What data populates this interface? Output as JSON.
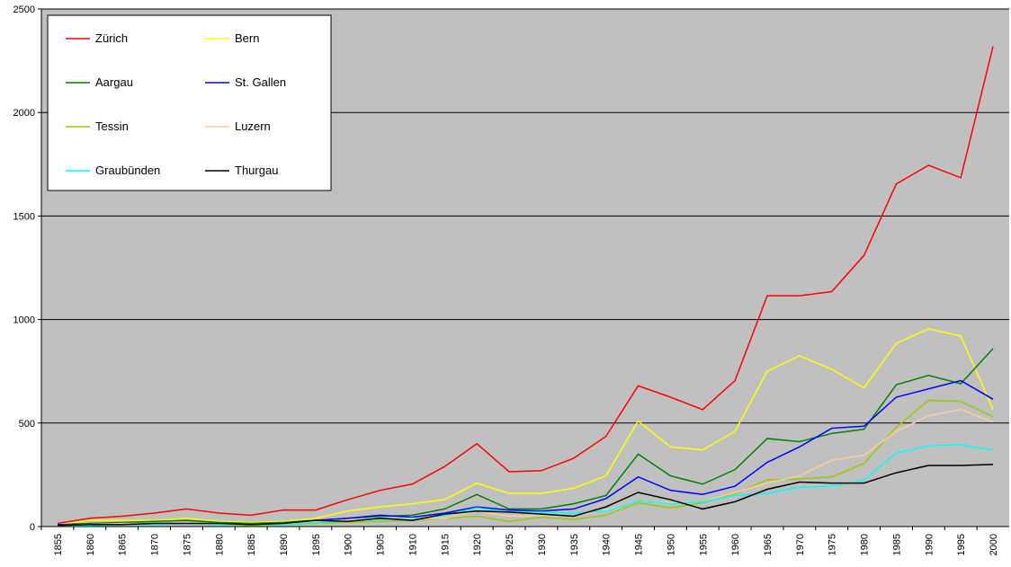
{
  "chart_data": {
    "type": "line",
    "categories": [
      "1855",
      "1860",
      "1865",
      "1870",
      "1875",
      "1880",
      "1885",
      "1890",
      "1895",
      "1900",
      "1905",
      "1910",
      "1915",
      "1920",
      "1925",
      "1930",
      "1935",
      "1940",
      "1945",
      "1950",
      "1955",
      "1960",
      "1965",
      "1970",
      "1975",
      "1980",
      "1985",
      "1990",
      "1995",
      "2000"
    ],
    "series": [
      {
        "name": "Zürich",
        "color": "#ff0000",
        "values": [
          15,
          40,
          50,
          65,
          85,
          65,
          55,
          80,
          80,
          130,
          175,
          205,
          290,
          400,
          265,
          270,
          330,
          435,
          680,
          625,
          565,
          705,
          1115,
          1115,
          1135,
          1310,
          1655,
          1745,
          1685,
          2320
        ]
      },
      {
        "name": "Bern",
        "color": "#ffff00",
        "values": [
          10,
          30,
          30,
          30,
          40,
          25,
          20,
          25,
          40,
          75,
          95,
          110,
          130,
          210,
          160,
          160,
          185,
          245,
          510,
          385,
          370,
          460,
          750,
          825,
          760,
          670,
          885,
          955,
          920,
          565
        ]
      },
      {
        "name": "Aargau",
        "color": "#008000",
        "values": [
          10,
          15,
          20,
          25,
          30,
          20,
          15,
          20,
          30,
          40,
          50,
          55,
          85,
          155,
          85,
          85,
          110,
          150,
          350,
          245,
          205,
          275,
          425,
          410,
          450,
          470,
          685,
          730,
          690,
          860
        ]
      },
      {
        "name": "St. Gallen",
        "color": "#0000ff",
        "values": [
          10,
          10,
          15,
          15,
          20,
          15,
          10,
          15,
          30,
          40,
          55,
          45,
          65,
          95,
          80,
          75,
          85,
          135,
          240,
          175,
          155,
          195,
          310,
          385,
          475,
          485,
          625,
          665,
          705,
          615
        ]
      },
      {
        "name": "Tessin",
        "color": "#99cc00",
        "values": [
          5,
          10,
          10,
          10,
          15,
          10,
          5,
          10,
          15,
          20,
          25,
          30,
          40,
          50,
          25,
          45,
          35,
          55,
          115,
          90,
          115,
          160,
          225,
          230,
          240,
          305,
          480,
          610,
          605,
          530
        ]
      },
      {
        "name": "Luzern",
        "color": "#ffcc99",
        "values": [
          5,
          10,
          15,
          15,
          20,
          15,
          10,
          15,
          25,
          30,
          35,
          40,
          40,
          75,
          50,
          55,
          50,
          80,
          125,
          115,
          120,
          165,
          210,
          245,
          320,
          345,
          460,
          535,
          565,
          505
        ]
      },
      {
        "name": "Graubünden",
        "color": "#00ffff",
        "values": [
          5,
          5,
          10,
          10,
          15,
          10,
          10,
          10,
          20,
          25,
          35,
          35,
          55,
          90,
          70,
          70,
          65,
          75,
          125,
          110,
          120,
          150,
          160,
          190,
          195,
          225,
          355,
          390,
          395,
          370
        ]
      },
      {
        "name": "Thurgau",
        "color": "#000000",
        "values": [
          5,
          10,
          10,
          15,
          15,
          15,
          10,
          15,
          30,
          25,
          40,
          30,
          60,
          75,
          70,
          60,
          50,
          95,
          165,
          130,
          85,
          120,
          180,
          215,
          210,
          210,
          260,
          295,
          295,
          300
        ]
      }
    ],
    "ylim": [
      0,
      2500
    ],
    "yticks": [
      0,
      500,
      1000,
      1500,
      2000,
      2500
    ],
    "grid": true,
    "legend": "upper left",
    "background": "#c0c0c0"
  }
}
